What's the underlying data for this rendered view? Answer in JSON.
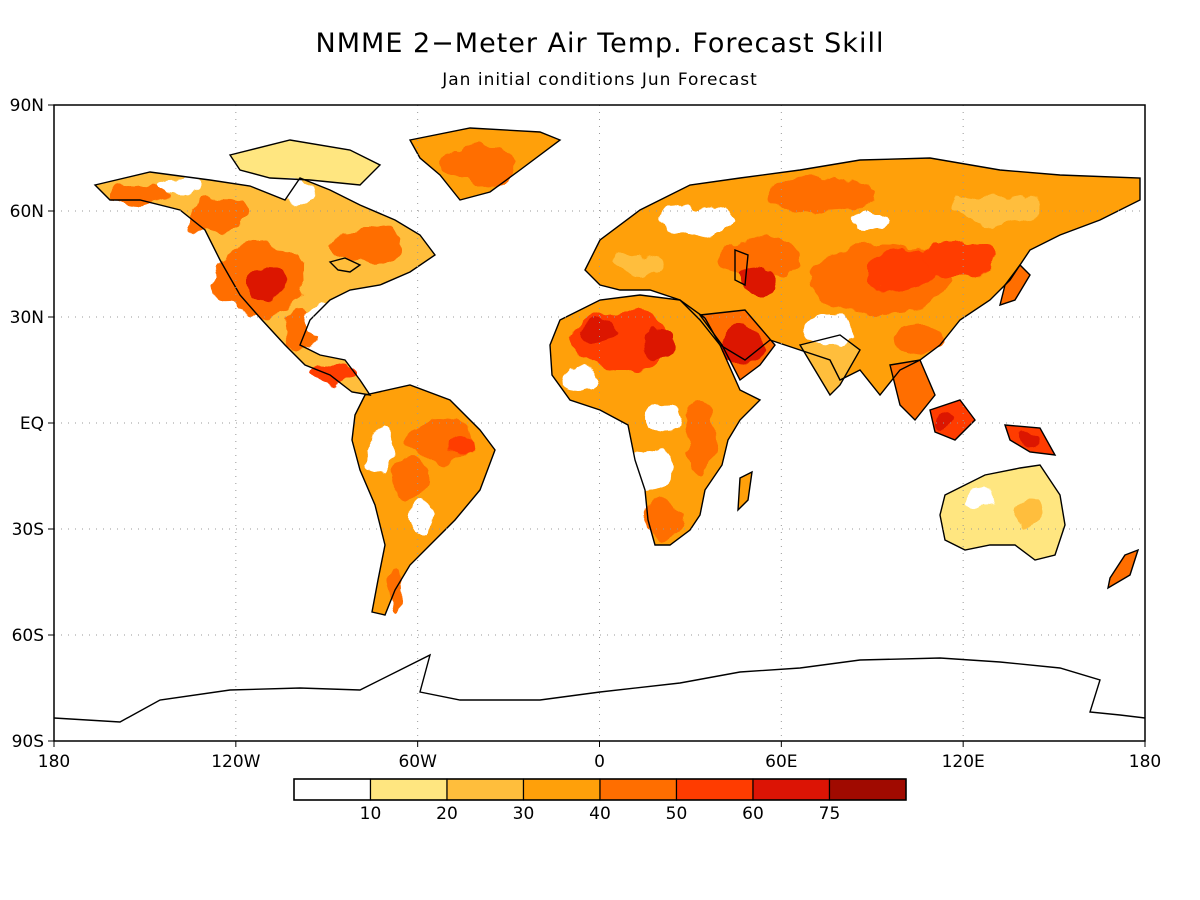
{
  "title": "NMME 2−Meter Air Temp. Forecast Skill",
  "subtitle": "Jan initial conditions   Jun Forecast",
  "map": {
    "projection": "cylindrical equidistant",
    "lon_range": [
      -180,
      180
    ],
    "lat_range": [
      -90,
      90
    ],
    "gridlines": "dotted",
    "lat_ticks": [
      {
        "lat": 90,
        "label": "90N"
      },
      {
        "lat": 60,
        "label": "60N"
      },
      {
        "lat": 30,
        "label": "30N"
      },
      {
        "lat": 0,
        "label": "EQ"
      },
      {
        "lat": -30,
        "label": "30S"
      },
      {
        "lat": -60,
        "label": "60S"
      },
      {
        "lat": -90,
        "label": "90S"
      }
    ],
    "lon_ticks": [
      {
        "lon": -180,
        "label": "180"
      },
      {
        "lon": -120,
        "label": "120W"
      },
      {
        "lon": -60,
        "label": "60W"
      },
      {
        "lon": 0,
        "label": "0"
      },
      {
        "lon": 60,
        "label": "60E"
      },
      {
        "lon": 120,
        "label": "120E"
      },
      {
        "lon": 180,
        "label": "180"
      }
    ]
  },
  "colorbar": {
    "colors": [
      "#ffffff",
      "#ffe680",
      "#ffbe3c",
      "#ffa00a",
      "#ff6e00",
      "#ff3c00",
      "#dc1405",
      "#a00a00"
    ],
    "labels": [
      "10",
      "20",
      "30",
      "40",
      "50",
      "60",
      "75"
    ]
  },
  "colors": {
    "land_outline": "#000000",
    "ocean": "#ffffff"
  }
}
